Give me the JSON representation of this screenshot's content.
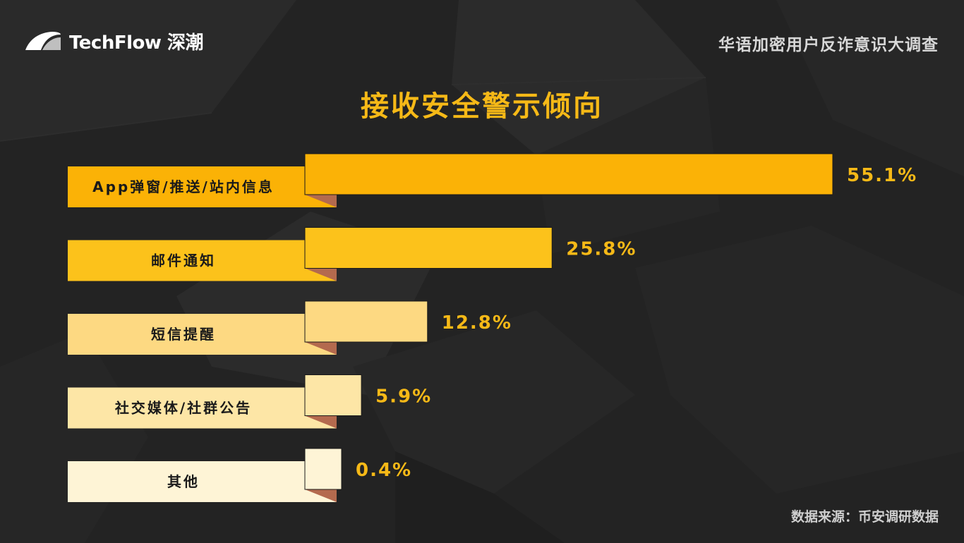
{
  "header": {
    "brand": "TechFlow 深潮",
    "survey_title": "华语加密用户反诈意识大调查"
  },
  "footer": {
    "source": "数据来源：币安调研数据"
  },
  "colors": {
    "background": "#232323",
    "title": "#f6b917",
    "value_label": "#f6b917",
    "label_text": "#1a1a1a",
    "fold_shadow": "#b46a4e",
    "bars": [
      "#fbb206",
      "#fcc21b",
      "#fdd982",
      "#fde6a6",
      "#fef4d6"
    ]
  },
  "chart_data": {
    "type": "bar",
    "orientation": "horizontal",
    "title": "接收安全警示倾向",
    "categories": [
      "App弹窗/推送/站内信息",
      "邮件通知",
      "短信提醒",
      "社交媒体/社群公告",
      "其他"
    ],
    "values": [
      55.1,
      25.8,
      12.8,
      5.9,
      0.4
    ],
    "value_labels": [
      "55.1%",
      "25.8%",
      "12.8%",
      "5.9%",
      "0.4%"
    ],
    "unit": "%",
    "xlabel": "",
    "ylabel": "",
    "grid": false,
    "legend": "none"
  }
}
